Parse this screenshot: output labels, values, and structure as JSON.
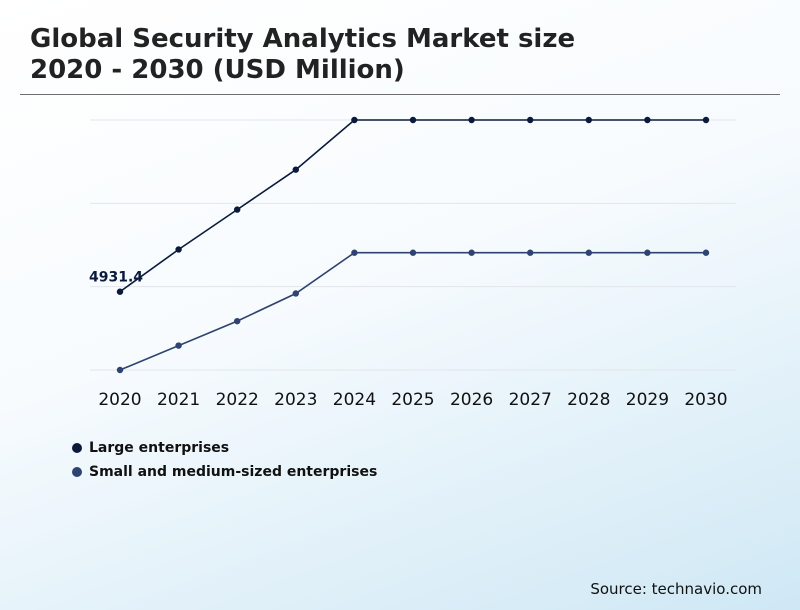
{
  "header": {
    "title_line1": "Global Security Analytics Market size",
    "title_line2": "2020 - 2030 (USD Million)"
  },
  "source": "Source: technavio.com",
  "chart_data": {
    "type": "line",
    "title": "Global Security Analytics Market size 2020 - 2030 (USD Million)",
    "x": [
      "2020",
      "2021",
      "2022",
      "2023",
      "2024",
      "2025",
      "2026",
      "2027",
      "2028",
      "2029",
      "2030"
    ],
    "series": [
      {
        "name": "Large enterprises",
        "color": "#0b1a3a",
        "values": [
          4931.4,
          5450,
          5940,
          6430,
          7040,
          7040,
          7040,
          7040,
          7040,
          7040,
          7040
        ],
        "data_labels": {
          "0": "4931.4"
        }
      },
      {
        "name": "Small and medium-sized enterprises",
        "color": "#2e4370",
        "values": [
          3970,
          4270,
          4570,
          4910,
          5410,
          5410,
          5410,
          5410,
          5410,
          5410,
          5410
        ]
      }
    ],
    "ylim": [
      3970,
      7040
    ],
    "grid": true,
    "legend": "bottom-left"
  }
}
